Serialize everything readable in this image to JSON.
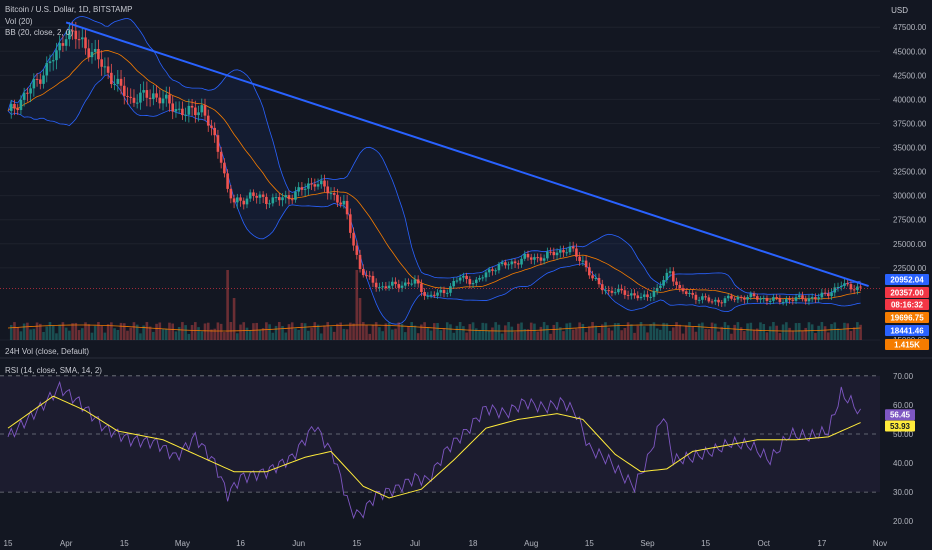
{
  "legend": {
    "symbol": "Bitcoin / U.S. Dollar, 1D, BITSTAMP",
    "vol": "Vol (20)",
    "bb": "BB (20, close, 2, 0)",
    "vol24h": "24H Vol (close, Default)",
    "rsi": "RSI (14, close, SMA, 14, 2)"
  },
  "currency": "USD",
  "price_tags": [
    {
      "text": "20952.04",
      "bg": "#2962ff"
    },
    {
      "text": "20357.00",
      "bg": "#f23645"
    },
    {
      "text": "08:16:32",
      "bg": "#f23645"
    },
    {
      "text": "19696.75",
      "bg": "#f57c00"
    },
    {
      "text": "18441.46",
      "bg": "#2962ff"
    },
    {
      "text": "1.415K",
      "bg": "#f57c00"
    }
  ],
  "rsi_tags": [
    {
      "text": "56.45",
      "bg": "#7e57c2"
    },
    {
      "text": "53.93",
      "bg": "#ffeb3b"
    }
  ],
  "chart_data": {
    "type": "candlestick",
    "title": "Bitcoin / U.S. Dollar, 1D, BITSTAMP",
    "price_axis": {
      "ticks": [
        "47500.00",
        "45000.00",
        "42500.00",
        "40000.00",
        "37500.00",
        "35000.00",
        "32500.00",
        "30000.00",
        "27500.00",
        "25000.00",
        "22500.00",
        "15000.00"
      ],
      "range": [
        15000,
        49500
      ]
    },
    "x_axis": {
      "ticks": [
        "15",
        "Apr",
        "15",
        "May",
        "16",
        "Jun",
        "15",
        "Jul",
        "18",
        "Aug",
        "15",
        "Sep",
        "15",
        "Oct",
        "17",
        "Nov"
      ]
    },
    "close_series": [
      {
        "d": 0,
        "p": 38500
      },
      {
        "d": 8,
        "p": 41500
      },
      {
        "d": 15,
        "p": 44700
      },
      {
        "d": 18,
        "p": 47000
      },
      {
        "d": 23,
        "p": 46000
      },
      {
        "d": 27,
        "p": 44500
      },
      {
        "d": 35,
        "p": 41000
      },
      {
        "d": 38,
        "p": 40000
      },
      {
        "d": 45,
        "p": 40500
      },
      {
        "d": 50,
        "p": 39500
      },
      {
        "d": 55,
        "p": 38500
      },
      {
        "d": 60,
        "p": 39200
      },
      {
        "d": 62,
        "p": 37500
      },
      {
        "d": 66,
        "p": 34000
      },
      {
        "d": 68,
        "p": 30500
      },
      {
        "d": 70,
        "p": 29200
      },
      {
        "d": 75,
        "p": 30000
      },
      {
        "d": 82,
        "p": 29500
      },
      {
        "d": 86,
        "p": 29800
      },
      {
        "d": 90,
        "p": 30400
      },
      {
        "d": 95,
        "p": 31500
      },
      {
        "d": 101,
        "p": 30000
      },
      {
        "d": 104,
        "p": 29000
      },
      {
        "d": 107,
        "p": 25000
      },
      {
        "d": 109,
        "p": 22500
      },
      {
        "d": 111,
        "p": 21500
      },
      {
        "d": 115,
        "p": 20500
      },
      {
        "d": 120,
        "p": 20700
      },
      {
        "d": 126,
        "p": 21000
      },
      {
        "d": 130,
        "p": 19500
      },
      {
        "d": 135,
        "p": 20000
      },
      {
        "d": 140,
        "p": 21500
      },
      {
        "d": 145,
        "p": 21000
      },
      {
        "d": 150,
        "p": 22500
      },
      {
        "d": 156,
        "p": 23000
      },
      {
        "d": 160,
        "p": 23500
      },
      {
        "d": 166,
        "p": 23600
      },
      {
        "d": 170,
        "p": 24200
      },
      {
        "d": 174,
        "p": 24400
      },
      {
        "d": 178,
        "p": 23200
      },
      {
        "d": 181,
        "p": 21300
      },
      {
        "d": 186,
        "p": 20000
      },
      {
        "d": 191,
        "p": 20000
      },
      {
        "d": 196,
        "p": 19300
      },
      {
        "d": 201,
        "p": 20200
      },
      {
        "d": 205,
        "p": 22200
      },
      {
        "d": 208,
        "p": 20100
      },
      {
        "d": 213,
        "p": 19500
      },
      {
        "d": 218,
        "p": 19000
      },
      {
        "d": 224,
        "p": 19300
      },
      {
        "d": 228,
        "p": 19500
      },
      {
        "d": 232,
        "p": 19400
      },
      {
        "d": 238,
        "p": 19100
      },
      {
        "d": 245,
        "p": 19300
      },
      {
        "d": 251,
        "p": 19400
      },
      {
        "d": 255,
        "p": 20100
      },
      {
        "d": 258,
        "p": 20700
      },
      {
        "d": 262,
        "p": 20500
      },
      {
        "d": 264,
        "p": 20357
      }
    ],
    "volume": {
      "avg_line": "1.415K",
      "axis_tick": "15000.00"
    },
    "trendline": {
      "from": {
        "d": 18,
        "p": 48000
      },
      "to": {
        "d": 264,
        "p": 20600
      }
    },
    "rsi": {
      "axis_ticks": [
        "70.00",
        "60.00",
        "50.00",
        "40.00",
        "30.00",
        "20.00"
      ],
      "range": [
        18,
        72
      ],
      "bands": [
        30,
        50,
        70
      ],
      "rsi_values": [
        {
          "d": 0,
          "v": 49
        },
        {
          "d": 10,
          "v": 59
        },
        {
          "d": 16,
          "v": 66
        },
        {
          "d": 22,
          "v": 61
        },
        {
          "d": 30,
          "v": 52
        },
        {
          "d": 38,
          "v": 48
        },
        {
          "d": 46,
          "v": 47
        },
        {
          "d": 52,
          "v": 42
        },
        {
          "d": 58,
          "v": 49
        },
        {
          "d": 64,
          "v": 40
        },
        {
          "d": 68,
          "v": 29
        },
        {
          "d": 72,
          "v": 35
        },
        {
          "d": 80,
          "v": 37
        },
        {
          "d": 88,
          "v": 42
        },
        {
          "d": 95,
          "v": 53
        },
        {
          "d": 101,
          "v": 42
        },
        {
          "d": 106,
          "v": 24
        },
        {
          "d": 109,
          "v": 22
        },
        {
          "d": 114,
          "v": 29
        },
        {
          "d": 120,
          "v": 31
        },
        {
          "d": 126,
          "v": 35
        },
        {
          "d": 130,
          "v": 34
        },
        {
          "d": 136,
          "v": 45
        },
        {
          "d": 142,
          "v": 51
        },
        {
          "d": 148,
          "v": 59
        },
        {
          "d": 154,
          "v": 57
        },
        {
          "d": 160,
          "v": 61
        },
        {
          "d": 166,
          "v": 59
        },
        {
          "d": 172,
          "v": 61
        },
        {
          "d": 176,
          "v": 57
        },
        {
          "d": 180,
          "v": 45
        },
        {
          "d": 186,
          "v": 41
        },
        {
          "d": 190,
          "v": 36
        },
        {
          "d": 194,
          "v": 32
        },
        {
          "d": 198,
          "v": 41
        },
        {
          "d": 203,
          "v": 57
        },
        {
          "d": 206,
          "v": 41
        },
        {
          "d": 212,
          "v": 42
        },
        {
          "d": 218,
          "v": 44
        },
        {
          "d": 224,
          "v": 47
        },
        {
          "d": 230,
          "v": 46
        },
        {
          "d": 236,
          "v": 41
        },
        {
          "d": 242,
          "v": 50
        },
        {
          "d": 248,
          "v": 49
        },
        {
          "d": 254,
          "v": 51
        },
        {
          "d": 258,
          "v": 64
        },
        {
          "d": 262,
          "v": 60
        },
        {
          "d": 264,
          "v": 56.45
        }
      ],
      "sma_values": [
        {
          "d": 0,
          "v": 52
        },
        {
          "d": 14,
          "v": 63
        },
        {
          "d": 24,
          "v": 58
        },
        {
          "d": 34,
          "v": 51
        },
        {
          "d": 48,
          "v": 48
        },
        {
          "d": 60,
          "v": 42
        },
        {
          "d": 70,
          "v": 37
        },
        {
          "d": 80,
          "v": 37
        },
        {
          "d": 92,
          "v": 42
        },
        {
          "d": 100,
          "v": 44
        },
        {
          "d": 110,
          "v": 32
        },
        {
          "d": 118,
          "v": 28
        },
        {
          "d": 128,
          "v": 31
        },
        {
          "d": 138,
          "v": 41
        },
        {
          "d": 148,
          "v": 52
        },
        {
          "d": 158,
          "v": 55
        },
        {
          "d": 170,
          "v": 57
        },
        {
          "d": 178,
          "v": 55
        },
        {
          "d": 188,
          "v": 43
        },
        {
          "d": 196,
          "v": 37
        },
        {
          "d": 204,
          "v": 38
        },
        {
          "d": 212,
          "v": 44
        },
        {
          "d": 222,
          "v": 46
        },
        {
          "d": 232,
          "v": 48
        },
        {
          "d": 244,
          "v": 48
        },
        {
          "d": 254,
          "v": 49
        },
        {
          "d": 264,
          "v": 53.93
        }
      ]
    },
    "colors": {
      "bull": "#26a69a",
      "bear": "#ef5350",
      "trend": "#2962ff",
      "bb_band": "#2962ff",
      "bb_basis": "#f57c00",
      "rsi": "#7e57c2",
      "rsi_sma": "#ffeb3b"
    }
  }
}
